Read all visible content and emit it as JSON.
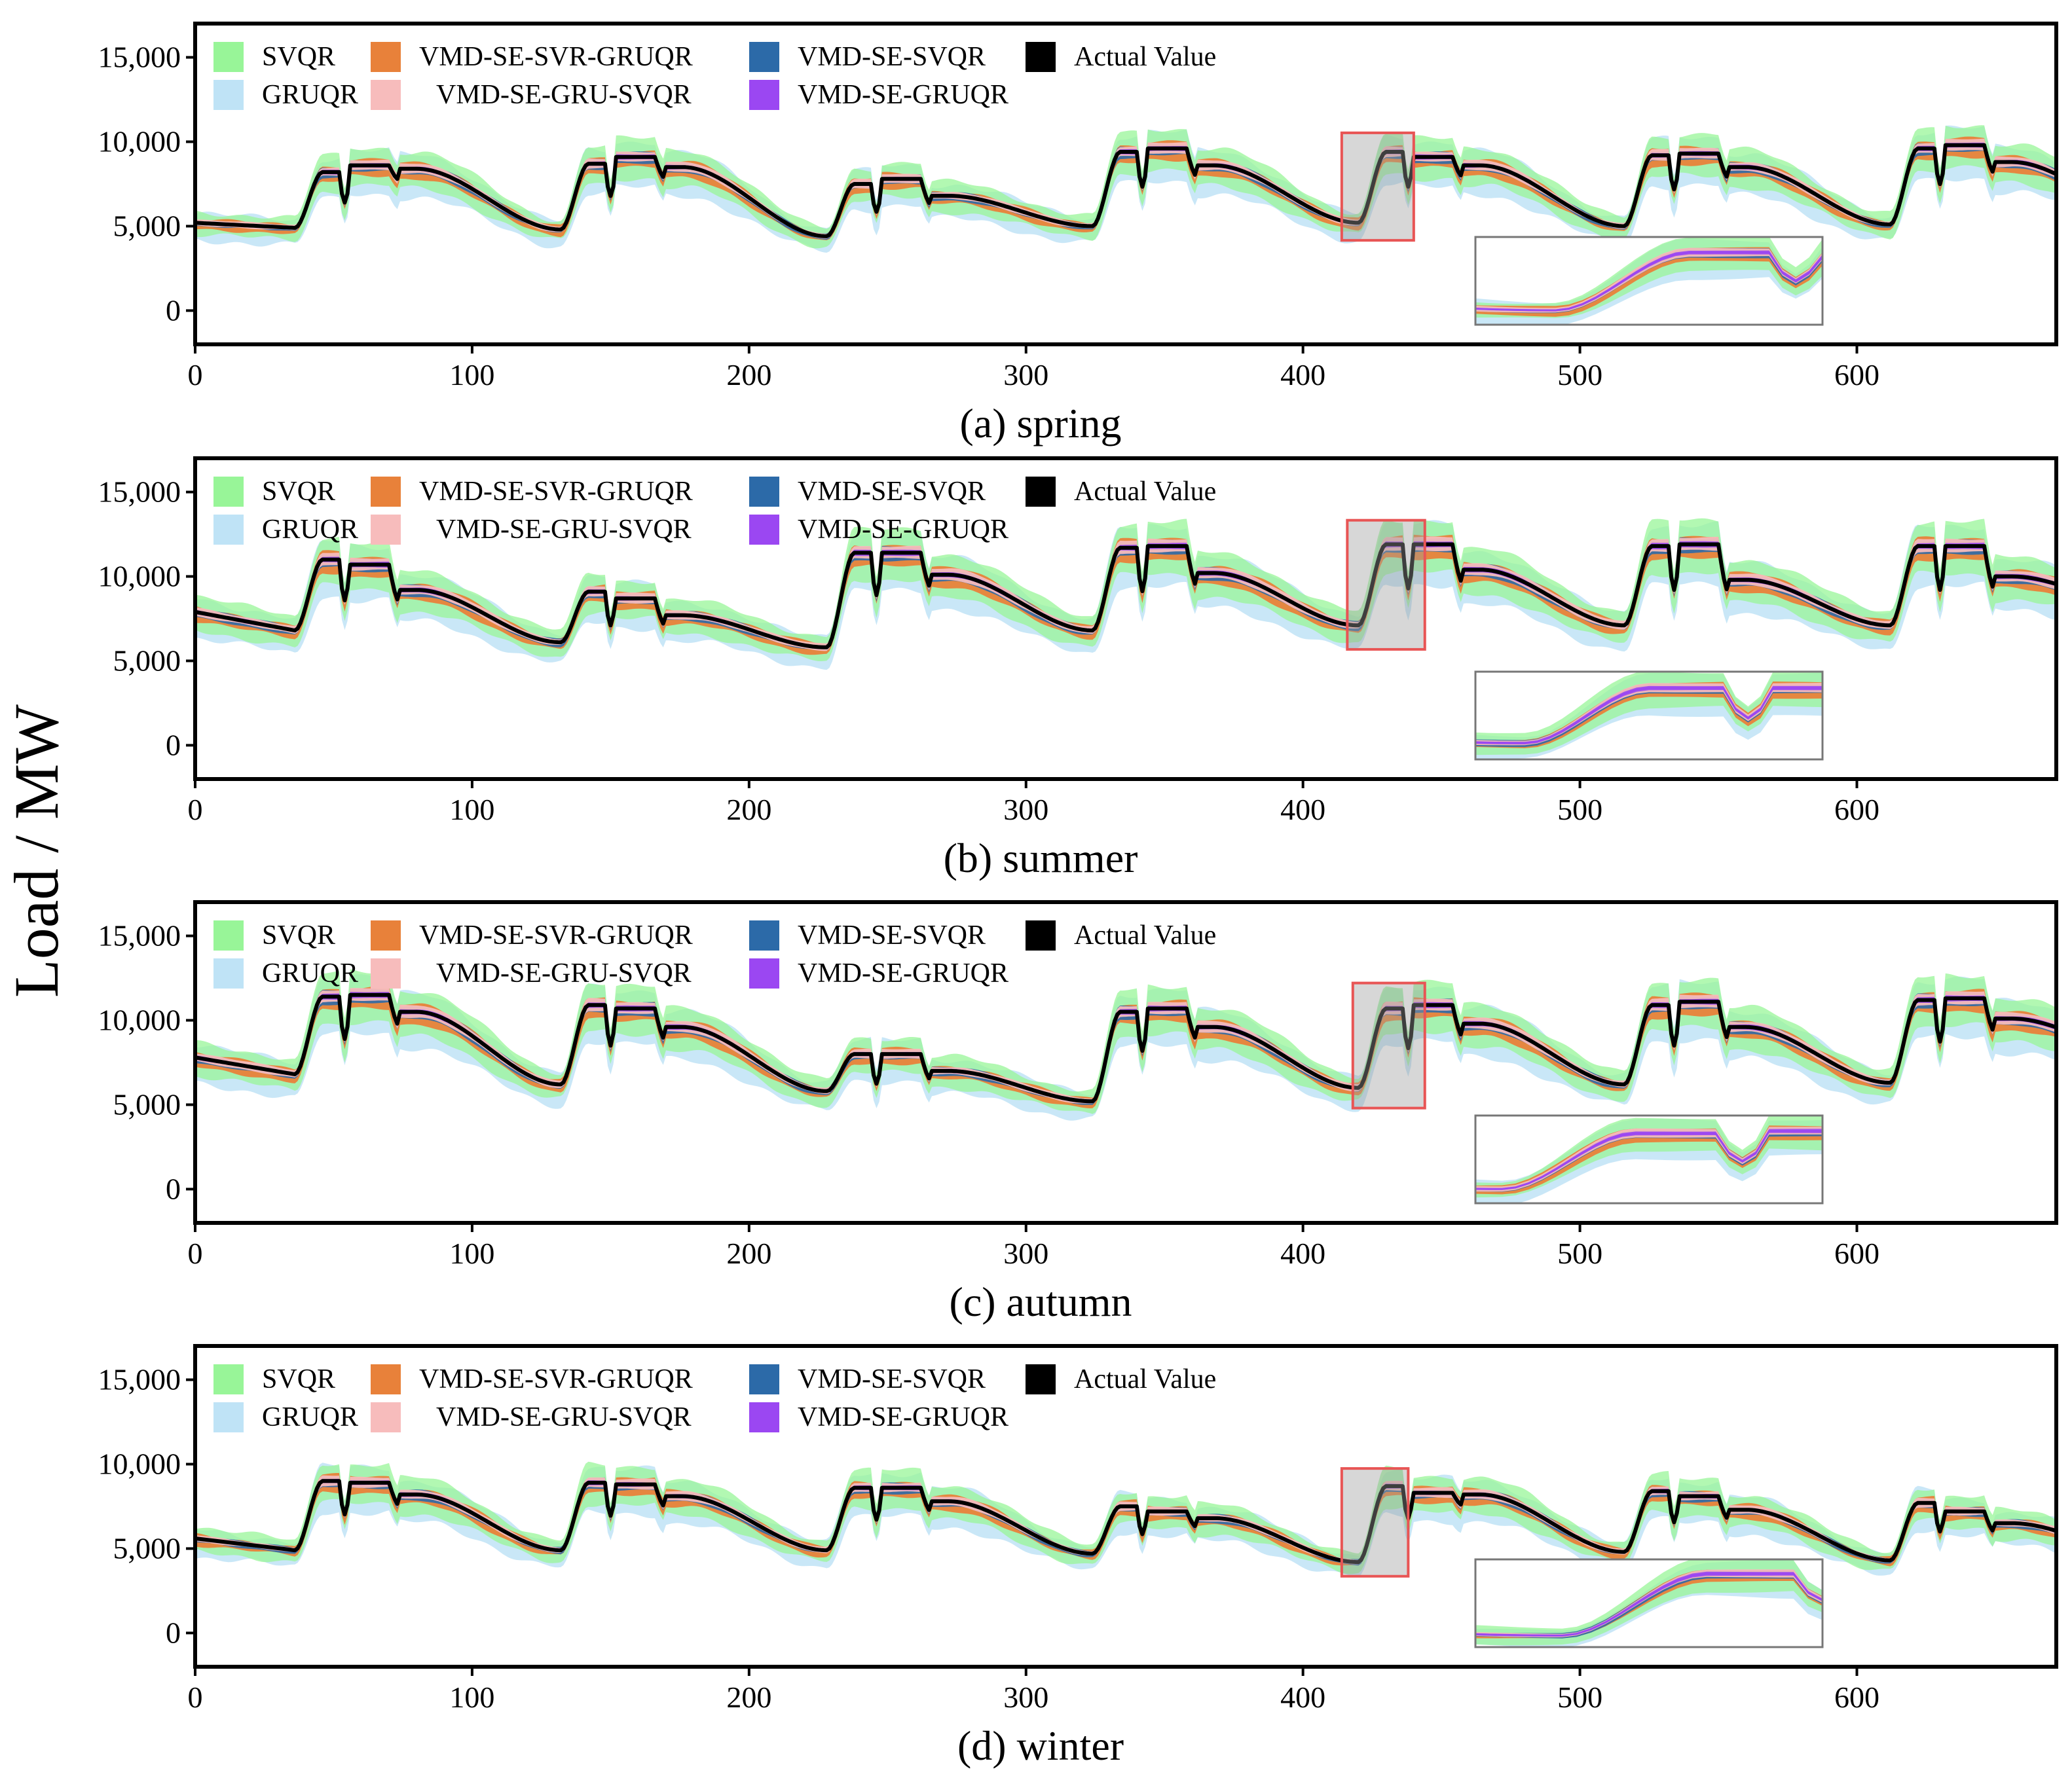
{
  "figure": {
    "y_axis_title": "Load / MW"
  },
  "colors": {
    "SVQR": "#98f598",
    "GRUQR": "#bfe3f6",
    "VMD-SE-SVR-GRUQR": "#e8813a",
    "VMD-SE-GRU-SVQR": "#f7bcbc",
    "VMD-SE-SVQR": "#2c6aa8",
    "VMD-SE-GRUQR": "#9b47f2",
    "Actual Value": "#000000",
    "zoom_box": "#e85555"
  },
  "chart_data": [
    {
      "type": "area",
      "id": "spring",
      "title": "(a) spring",
      "xlabel": "",
      "ylabel": "Load / MW",
      "xlim": [
        0,
        672
      ],
      "ylim": [
        -2000,
        17000
      ],
      "xticks": [
        0,
        100,
        200,
        300,
        400,
        500,
        600
      ],
      "xtick_labels": [
        "0",
        "100",
        "200",
        "300",
        "400",
        "500",
        "600"
      ],
      "yticks": [
        0,
        5000,
        10000,
        15000
      ],
      "ytick_labels": [
        "0",
        "5,000",
        "10,000",
        "15,000"
      ],
      "legend": [
        "SVQR",
        "VMD-SE-SVR-GRUQR",
        "VMD-SE-SVQR",
        "Actual Value",
        "GRUQR",
        "VMD-SE-GRU-SVQR",
        "VMD-SE-GRUQR"
      ],
      "legend_position": "top-left",
      "grid": false,
      "daily_profile": {
        "minima": [
          5200,
          4900,
          4800,
          4400,
          5000,
          5200,
          5000,
          5100,
          5600
        ],
        "peaks": [
          [
            8200,
            8600,
            8400
          ],
          [
            8700,
            9100,
            8500
          ],
          [
            7500,
            7800,
            6800
          ],
          [
            9400,
            9600,
            8600
          ],
          [
            9400,
            9100,
            8600
          ],
          [
            9200,
            9300,
            8500
          ],
          [
            9600,
            9800,
            8800
          ]
        ]
      },
      "zoom_window": [
        414,
        440
      ]
    },
    {
      "type": "area",
      "id": "summer",
      "title": "(b) summer",
      "xlabel": "",
      "ylabel": "Load / MW",
      "xlim": [
        0,
        672
      ],
      "ylim": [
        -2000,
        17000
      ],
      "xticks": [
        0,
        100,
        200,
        300,
        400,
        500,
        600
      ],
      "xtick_labels": [
        "0",
        "100",
        "200",
        "300",
        "400",
        "500",
        "600"
      ],
      "yticks": [
        0,
        5000,
        10000,
        15000
      ],
      "ytick_labels": [
        "0",
        "5,000",
        "10,000",
        "15,000"
      ],
      "legend": [
        "SVQR",
        "VMD-SE-SVR-GRUQR",
        "VMD-SE-SVQR",
        "Actual Value",
        "GRUQR",
        "VMD-SE-GRU-SVQR",
        "VMD-SE-GRUQR"
      ],
      "legend_position": "top-left",
      "grid": false,
      "daily_profile": {
        "minima": [
          7900,
          6800,
          6100,
          5800,
          6800,
          7100,
          7100,
          7100,
          8000
        ],
        "peaks": [
          [
            11000,
            10700,
            9200
          ],
          [
            9100,
            8700,
            7700
          ],
          [
            11400,
            11400,
            10100
          ],
          [
            11700,
            11800,
            10200
          ],
          [
            11900,
            11900,
            10400
          ],
          [
            11800,
            11900,
            9800
          ],
          [
            11800,
            11800,
            10000
          ]
        ]
      },
      "zoom_window": [
        416,
        444
      ]
    },
    {
      "type": "area",
      "id": "autumn",
      "title": "(c) autumn",
      "xlabel": "",
      "ylabel": "Load / MW",
      "xlim": [
        0,
        672
      ],
      "ylim": [
        -2000,
        17000
      ],
      "xticks": [
        0,
        100,
        200,
        300,
        400,
        500,
        600
      ],
      "xtick_labels": [
        "0",
        "100",
        "200",
        "300",
        "400",
        "500",
        "600"
      ],
      "yticks": [
        0,
        5000,
        10000,
        15000
      ],
      "ytick_labels": [
        "0",
        "5,000",
        "10,000",
        "15,000"
      ],
      "legend": [
        "SVQR",
        "VMD-SE-SVR-GRUQR",
        "VMD-SE-SVQR",
        "Actual Value",
        "GRUQR",
        "VMD-SE-GRU-SVQR",
        "VMD-SE-GRUQR"
      ],
      "legend_position": "top-left",
      "grid": false,
      "daily_profile": {
        "minima": [
          7800,
          6800,
          6200,
          5800,
          5200,
          6000,
          6200,
          6300,
          7800
        ],
        "peaks": [
          [
            11400,
            11500,
            10500
          ],
          [
            10900,
            10700,
            9600
          ],
          [
            8000,
            8000,
            7000
          ],
          [
            10500,
            10700,
            9600
          ],
          [
            10700,
            10900,
            9800
          ],
          [
            10900,
            11100,
            9600
          ],
          [
            11200,
            11300,
            10100
          ]
        ]
      },
      "zoom_window": [
        418,
        444
      ]
    },
    {
      "type": "area",
      "id": "winter",
      "title": "(d) winter",
      "xlabel": "",
      "ylabel": "Load / MW",
      "xlim": [
        0,
        672
      ],
      "ylim": [
        -2000,
        17000
      ],
      "xticks": [
        0,
        100,
        200,
        300,
        400,
        500,
        600
      ],
      "xtick_labels": [
        "0",
        "100",
        "200",
        "300",
        "400",
        "500",
        "600"
      ],
      "yticks": [
        0,
        5000,
        10000,
        15000
      ],
      "ytick_labels": [
        "0",
        "5,000",
        "10,000",
        "15,000"
      ],
      "legend": [
        "SVQR",
        "VMD-SE-SVR-GRUQR",
        "VMD-SE-SVQR",
        "Actual Value",
        "GRUQR",
        "VMD-SE-GRU-SVQR",
        "VMD-SE-GRUQR"
      ],
      "legend_position": "top-left",
      "grid": false,
      "daily_profile": {
        "minima": [
          5600,
          4900,
          4900,
          4900,
          4700,
          4200,
          4800,
          4300,
          4500
        ],
        "peaks": [
          [
            9000,
            8900,
            8200
          ],
          [
            8900,
            8800,
            8100
          ],
          [
            8600,
            8600,
            7800
          ],
          [
            7500,
            7200,
            6800
          ],
          [
            8700,
            8300,
            8200
          ],
          [
            8400,
            8100,
            7300
          ],
          [
            7700,
            7200,
            6500
          ]
        ]
      },
      "zoom_window": [
        414,
        438
      ]
    }
  ]
}
